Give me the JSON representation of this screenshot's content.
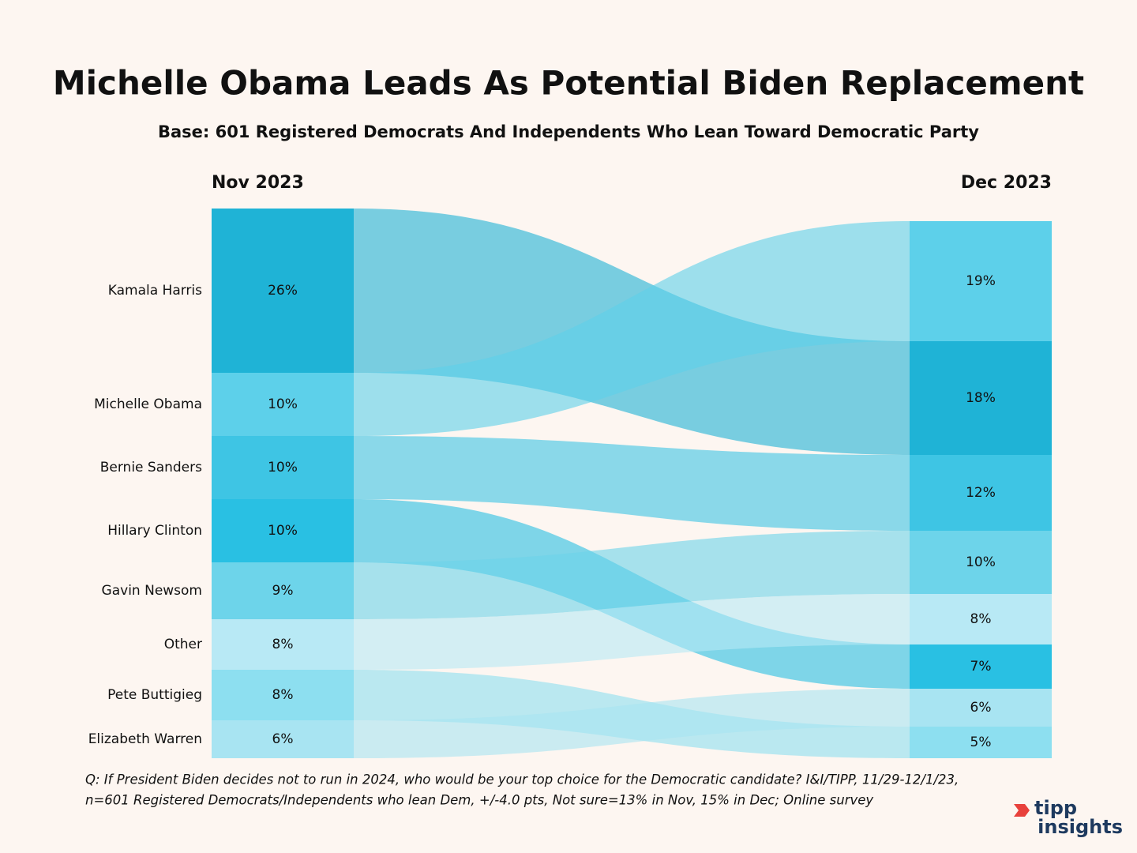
{
  "chart_data": {
    "type": "sankey",
    "title": "Michelle Obama Leads As Potential Biden Replacement",
    "subtitle": "Base: 601 Registered Democrats And Independents Who Lean Toward Democratic Party",
    "categories": [
      "Kamala Harris",
      "Michelle Obama",
      "Bernie Sanders",
      "Hillary Clinton",
      "Gavin Newsom",
      "Other",
      "Pete Buttigieg",
      "Elizabeth Warren"
    ],
    "colors": [
      "#1fb3d6",
      "#5dd0ea",
      "#3ec5e4",
      "#29c0e3",
      "#6dd4ea",
      "#b8e9f5",
      "#8ddff0",
      "#a8e4f2"
    ],
    "series": [
      {
        "name": "Nov 2023",
        "values": [
          26,
          10,
          10,
          10,
          9,
          8,
          8,
          6
        ],
        "value_labels": [
          "26%",
          "10%",
          "10%",
          "10%",
          "9%",
          "8%",
          "8%",
          "6%"
        ]
      },
      {
        "name": "Dec 2023",
        "values": [
          18,
          19,
          12,
          7,
          10,
          8,
          5,
          6
        ],
        "value_labels": [
          "18%",
          "19%",
          "12%",
          "7%",
          "10%",
          "8%",
          "5%",
          "6%"
        ]
      }
    ],
    "footnote": [
      "Q:  If President Biden decides not to run in 2024, who would be your top choice for the Democratic candidate? I&I/TIPP, 11/29-12/1/23,",
      "n=601 Registered Democrats/Independents who lean Dem, +/-4.0 pts, Not sure=13% in Nov, 15% in Dec; Online survey"
    ],
    "logo": [
      "tipp",
      "insights"
    ]
  }
}
